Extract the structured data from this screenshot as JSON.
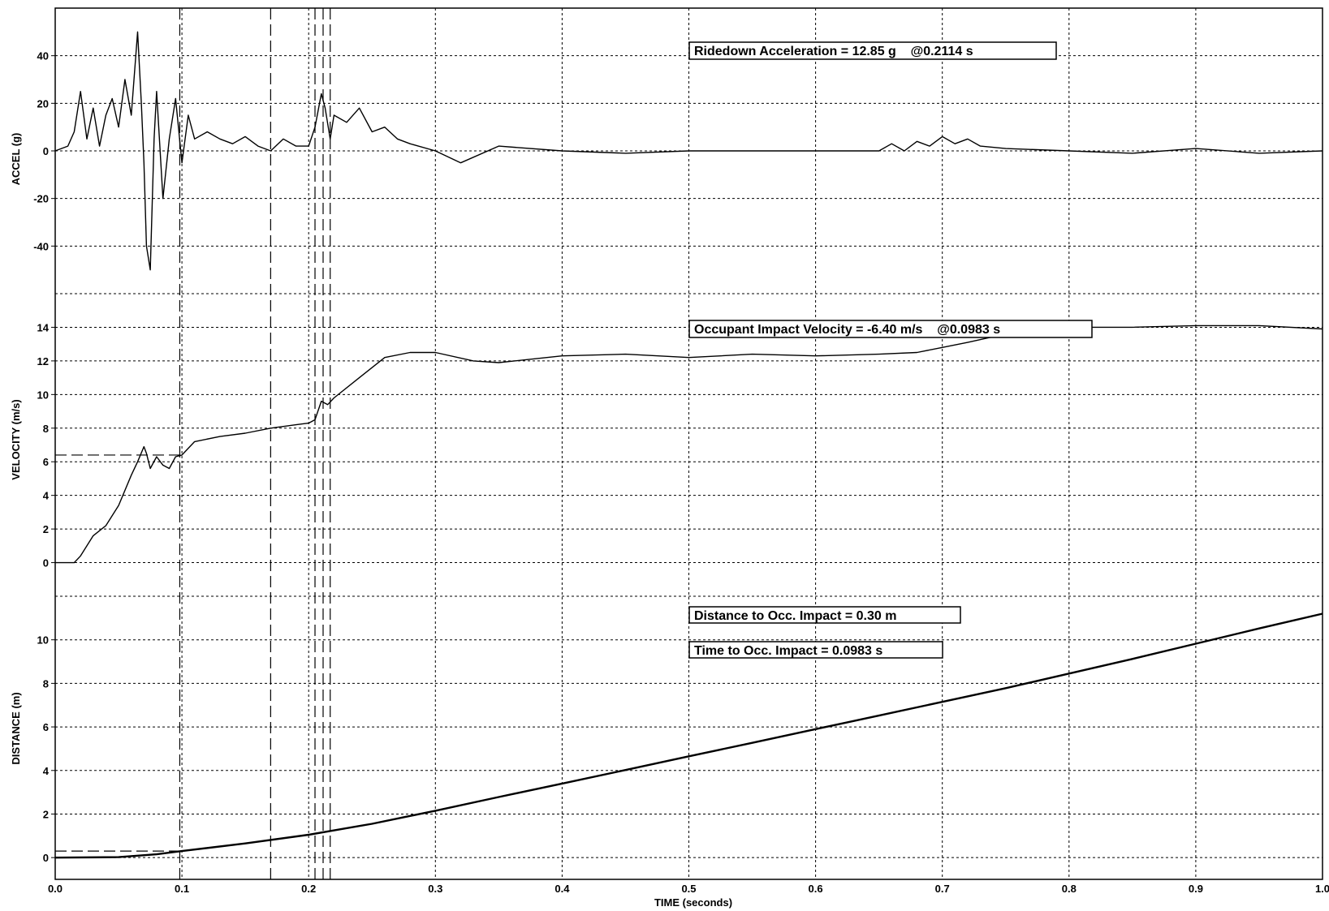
{
  "chart_data": [
    {
      "type": "line",
      "panel": "acceleration",
      "ylabel": "ACCEL (g)",
      "ylim": [
        -60,
        60
      ],
      "yticks": [
        40,
        20,
        0,
        -20,
        -40
      ],
      "ytick_labels": [
        "40",
        "20",
        "0",
        "-20",
        "-40"
      ],
      "grid": true,
      "series": [
        {
          "x": [
            0.0,
            0.01,
            0.015,
            0.02,
            0.025,
            0.03,
            0.035,
            0.04,
            0.045,
            0.05,
            0.055,
            0.06,
            0.065,
            0.068,
            0.07,
            0.072,
            0.075,
            0.078,
            0.08,
            0.085,
            0.09,
            0.095,
            0.1,
            0.105,
            0.11,
            0.12,
            0.13,
            0.14,
            0.15,
            0.16,
            0.17,
            0.18,
            0.19,
            0.2,
            0.205,
            0.21,
            0.213,
            0.217,
            0.22,
            0.23,
            0.24,
            0.25,
            0.26,
            0.27,
            0.28,
            0.3,
            0.32,
            0.35,
            0.4,
            0.45,
            0.5,
            0.55,
            0.6,
            0.65,
            0.66,
            0.67,
            0.68,
            0.69,
            0.7,
            0.71,
            0.72,
            0.73,
            0.75,
            0.8,
            0.85,
            0.9,
            0.95,
            1.0
          ],
          "y": [
            0,
            2,
            8,
            25,
            5,
            18,
            2,
            15,
            22,
            10,
            30,
            15,
            50,
            20,
            -5,
            -40,
            -50,
            5,
            25,
            -20,
            5,
            22,
            -5,
            15,
            5,
            8,
            5,
            3,
            6,
            2,
            0,
            5,
            2,
            2,
            10,
            24,
            18,
            5,
            15,
            12,
            18,
            8,
            10,
            5,
            3,
            0,
            -5,
            2,
            0,
            -1,
            0,
            0,
            0,
            0,
            3,
            0,
            4,
            2,
            6,
            3,
            5,
            2,
            1,
            0,
            -1,
            1,
            -1,
            0
          ]
        }
      ]
    },
    {
      "type": "line",
      "panel": "velocity",
      "ylabel": "VELOCITY (m/s)",
      "ylim": [
        -2,
        16
      ],
      "yticks": [
        14,
        12,
        10,
        8,
        6,
        4,
        2,
        0
      ],
      "ytick_labels": [
        "14",
        "12",
        "10",
        "8",
        "6",
        "4",
        "2",
        "0"
      ],
      "grid": true,
      "series": [
        {
          "x": [
            0.0,
            0.015,
            0.02,
            0.03,
            0.04,
            0.05,
            0.06,
            0.065,
            0.07,
            0.072,
            0.075,
            0.08,
            0.085,
            0.09,
            0.095,
            0.1,
            0.11,
            0.13,
            0.15,
            0.17,
            0.19,
            0.2,
            0.205,
            0.21,
            0.215,
            0.22,
            0.24,
            0.26,
            0.28,
            0.3,
            0.33,
            0.35,
            0.4,
            0.45,
            0.5,
            0.55,
            0.6,
            0.65,
            0.68,
            0.7,
            0.72,
            0.75,
            0.8,
            0.85,
            0.9,
            0.95,
            1.0
          ],
          "y": [
            0,
            0,
            0.4,
            1.6,
            2.2,
            3.4,
            5.2,
            6.0,
            6.9,
            6.5,
            5.6,
            6.3,
            5.8,
            5.6,
            6.3,
            6.4,
            7.2,
            7.5,
            7.7,
            8.0,
            8.2,
            8.3,
            8.5,
            9.6,
            9.4,
            9.8,
            11.0,
            12.2,
            12.5,
            12.5,
            12.0,
            11.9,
            12.3,
            12.4,
            12.2,
            12.4,
            12.3,
            12.4,
            12.5,
            12.8,
            13.1,
            13.6,
            14.0,
            14.0,
            14.1,
            14.1,
            13.9
          ]
        }
      ]
    },
    {
      "type": "line",
      "panel": "distance",
      "ylabel": "DISTANCE (m)",
      "xlabel": "TIME (seconds)",
      "xlim": [
        0.0,
        1.0
      ],
      "xticks": [
        0.0,
        0.1,
        0.2,
        0.3,
        0.4,
        0.5,
        0.6,
        0.7,
        0.8,
        0.9,
        1.0
      ],
      "xtick_labels": [
        "0.0",
        "0.1",
        "0.2",
        "0.3",
        "0.4",
        "0.5",
        "0.6",
        "0.7",
        "0.8",
        "0.9",
        "1.0"
      ],
      "ylim": [
        -1,
        12
      ],
      "yticks": [
        10,
        8,
        6,
        4,
        2,
        0
      ],
      "ytick_labels": [
        "10",
        "8",
        "6",
        "4",
        "2",
        "0"
      ],
      "grid": true,
      "series": [
        {
          "x": [
            0.0,
            0.05,
            0.08,
            0.1,
            0.15,
            0.2,
            0.25,
            0.3,
            0.35,
            0.4,
            0.45,
            0.5,
            0.55,
            0.6,
            0.65,
            0.7,
            0.75,
            0.8,
            0.85,
            0.9,
            0.95,
            1.0
          ],
          "y": [
            0,
            0.02,
            0.15,
            0.3,
            0.65,
            1.05,
            1.55,
            2.15,
            2.78,
            3.4,
            4.02,
            4.65,
            5.27,
            5.9,
            6.52,
            7.15,
            7.78,
            8.45,
            9.12,
            9.82,
            10.52,
            11.2
          ]
        }
      ]
    }
  ],
  "markers": {
    "time_lines": [
      0.0983,
      0.17,
      0.205,
      0.2114,
      0.217
    ],
    "velocity_reference": 6.4,
    "distance_reference": 0.3
  },
  "annotations": {
    "ridedown": "Ridedown Acceleration = 12.85 g    @0.2114 s",
    "oiv": "Occupant Impact Velocity = -6.40 m/s    @0.0983 s",
    "distance": "Distance to Occ. Impact = 0.30 m",
    "time": "Time to Occ. Impact = 0.0983 s"
  }
}
